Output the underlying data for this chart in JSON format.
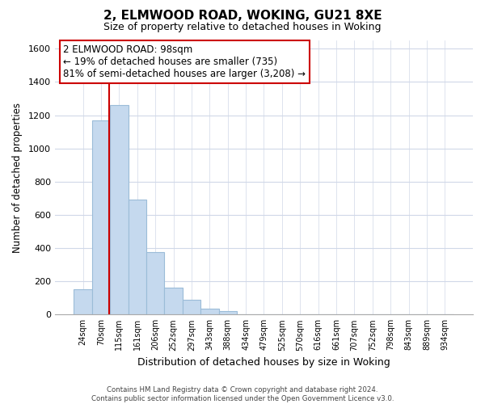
{
  "title": "2, ELMWOOD ROAD, WOKING, GU21 8XE",
  "subtitle": "Size of property relative to detached houses in Woking",
  "xlabel": "Distribution of detached houses by size in Woking",
  "ylabel": "Number of detached properties",
  "bar_labels": [
    "24sqm",
    "70sqm",
    "115sqm",
    "161sqm",
    "206sqm",
    "252sqm",
    "297sqm",
    "343sqm",
    "388sqm",
    "434sqm",
    "479sqm",
    "525sqm",
    "570sqm",
    "616sqm",
    "661sqm",
    "707sqm",
    "752sqm",
    "798sqm",
    "843sqm",
    "889sqm",
    "934sqm"
  ],
  "bar_values": [
    150,
    1170,
    1260,
    690,
    375,
    160,
    90,
    35,
    20,
    0,
    0,
    0,
    0,
    0,
    0,
    0,
    0,
    0,
    0,
    0,
    0
  ],
  "bar_color": "#c5d9ee",
  "bar_edge_color": "#9bbcd8",
  "vline_color": "#cc0000",
  "vline_x_index": 1.425,
  "ylim": [
    0,
    1650
  ],
  "yticks": [
    0,
    200,
    400,
    600,
    800,
    1000,
    1200,
    1400,
    1600
  ],
  "annotation_title": "2 ELMWOOD ROAD: 98sqm",
  "annotation_line1": "← 19% of detached houses are smaller (735)",
  "annotation_line2": "81% of semi-detached houses are larger (3,208) →",
  "annotation_box_color": "#ffffff",
  "annotation_box_edge": "#cc0000",
  "footer_line1": "Contains HM Land Registry data © Crown copyright and database right 2024.",
  "footer_line2": "Contains public sector information licensed under the Open Government Licence v3.0.",
  "bg_color": "#ffffff",
  "grid_color": "#d0d8e8"
}
